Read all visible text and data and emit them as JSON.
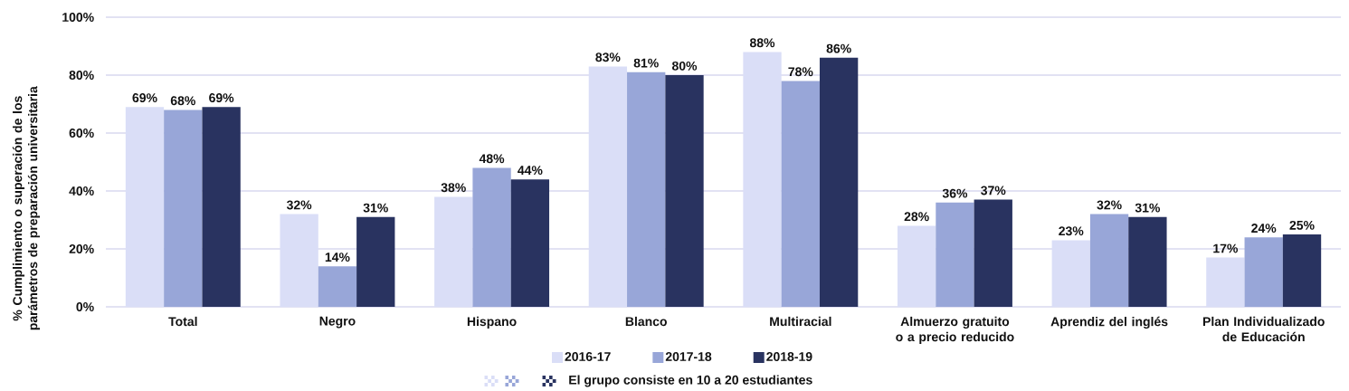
{
  "chart_data": {
    "type": "bar",
    "ylabel": "% Cumplimiento o superación de los parámetros de preparación universitaria",
    "categories": [
      "Total",
      "Negro",
      "Hispano",
      "Blanco",
      "Multiracial",
      "Almuerzo gratuito o a precio reducido",
      "Aprendiz del inglés",
      "Plan Individualizado de Educación"
    ],
    "series": [
      {
        "name": "2016-17",
        "color": "#dadef7",
        "values": [
          69,
          32,
          38,
          83,
          88,
          28,
          23,
          17
        ],
        "value_labels": [
          "69%",
          "32%",
          "38%",
          "83%",
          "88%",
          "28%",
          "23%",
          "17%"
        ]
      },
      {
        "name": "2017-18",
        "color": "#98a6d8",
        "values": [
          68,
          14,
          48,
          81,
          78,
          36,
          32,
          24
        ],
        "value_labels": [
          "68%",
          "14%",
          "48%",
          "81%",
          "78%",
          "36%",
          "32%",
          "24%"
        ]
      },
      {
        "name": "2018-19",
        "color": "#293360",
        "values": [
          69,
          31,
          44,
          80,
          86,
          37,
          31,
          25
        ],
        "value_labels": [
          "69%",
          "31%",
          "44%",
          "80%",
          "86%",
          "37%",
          "31%",
          "25%"
        ]
      }
    ],
    "ylim": [
      0,
      100
    ],
    "yticks": [
      {
        "value": 0,
        "label": "0%"
      },
      {
        "value": 20,
        "label": "20%"
      },
      {
        "value": 40,
        "label": "40%"
      },
      {
        "value": 60,
        "label": "60%"
      },
      {
        "value": 80,
        "label": "80%"
      },
      {
        "value": 100,
        "label": "100%"
      }
    ],
    "grid": "y",
    "legend": "bottom",
    "annotations": [
      "El grupo consiste en 10 a 20 estudiantes"
    ]
  }
}
